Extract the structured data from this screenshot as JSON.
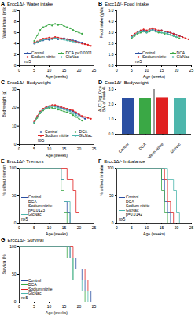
{
  "chart_data": [
    {
      "panel": "A",
      "type": "line",
      "title": "Ercc1Δ/- Water intake",
      "x_label": "Age (weeks)",
      "y_label": "Water intake (ml/day)",
      "x": [
        5,
        6,
        7,
        8,
        9,
        10,
        11,
        12,
        13,
        14,
        15,
        16,
        17,
        18,
        19,
        20,
        21,
        22,
        23,
        24
      ],
      "xlim": [
        0,
        25
      ],
      "xticks": [
        0,
        5,
        10,
        15,
        20,
        25
      ],
      "ylim": [
        0,
        10
      ],
      "yticks": [
        0,
        2,
        4,
        6,
        8,
        10
      ],
      "marker": "circle",
      "legend": "lower right",
      "annotations": [
        {
          "text": "p<0.0001",
          "series": "DCA"
        },
        {
          "text": "n≥5"
        }
      ],
      "series": [
        {
          "name": "Control",
          "color": "#2b4fa2",
          "values": [
            4.0,
            4.2,
            4.5,
            4.6,
            4.8,
            4.7,
            4.9,
            5.0,
            4.8,
            4.9,
            5.0,
            4.8,
            4.7,
            4.6,
            4.5,
            4.3,
            4.2,
            4.0,
            null,
            null
          ]
        },
        {
          "name": "DCA",
          "color": "#3aa845",
          "values": [
            4.5,
            5.5,
            6.5,
            7.0,
            7.2,
            7.5,
            7.3,
            7.6,
            7.4,
            7.5,
            7.2,
            7.0,
            6.8,
            6.5,
            6.2,
            6.0,
            5.8,
            null,
            null,
            null
          ]
        },
        {
          "name": "Sodium nitrite",
          "color": "#e02020",
          "values": [
            4.2,
            4.4,
            4.6,
            4.9,
            5.0,
            5.1,
            5.0,
            5.2,
            5.1,
            5.0,
            4.9,
            4.8,
            4.6,
            4.5,
            4.3,
            4.2,
            4.0,
            3.9,
            3.8,
            3.6
          ]
        },
        {
          "name": "GlcNac",
          "color": "#4db6ac",
          "values": [
            4.1,
            4.3,
            4.5,
            4.7,
            4.8,
            4.9,
            4.8,
            5.0,
            4.9,
            4.8,
            4.7,
            4.6,
            4.5,
            4.4,
            4.2,
            4.1,
            null,
            null,
            null,
            null
          ]
        }
      ]
    },
    {
      "panel": "B",
      "type": "line",
      "title": "Ercc1Δ/- Food intake",
      "x_label": "Age (weeks)",
      "y_label": "Food intake (g/day)",
      "x": [
        5,
        6,
        7,
        8,
        9,
        10,
        11,
        12,
        13,
        14,
        15,
        16,
        17,
        18,
        19,
        20,
        21,
        22,
        23,
        24
      ],
      "xlim": [
        0,
        25
      ],
      "xticks": [
        0,
        5,
        10,
        15,
        20,
        25
      ],
      "ylim": [
        0,
        5
      ],
      "yticks": [
        0,
        1,
        2,
        3,
        4,
        5
      ],
      "marker": "circle",
      "legend": "lower right",
      "annotations": [
        {
          "text": "n≥5"
        }
      ],
      "series": [
        {
          "name": "Control",
          "color": "#2b4fa2",
          "values": [
            2.6,
            2.8,
            3.0,
            3.1,
            3.2,
            3.1,
            3.2,
            3.3,
            3.2,
            3.1,
            3.2,
            3.1,
            3.0,
            3.0,
            2.9,
            2.8,
            2.7,
            2.6,
            null,
            null
          ]
        },
        {
          "name": "DCA",
          "color": "#3aa845",
          "values": [
            2.5,
            2.7,
            2.9,
            3.0,
            3.1,
            3.0,
            3.1,
            3.2,
            3.1,
            3.0,
            3.0,
            2.9,
            2.9,
            2.8,
            2.7,
            2.6,
            2.5,
            null,
            null,
            null
          ]
        },
        {
          "name": "Sodium nitrite",
          "color": "#e02020",
          "values": [
            2.7,
            2.9,
            3.1,
            3.2,
            3.3,
            3.2,
            3.3,
            3.4,
            3.3,
            3.2,
            3.2,
            3.1,
            3.1,
            3.0,
            2.9,
            2.8,
            2.7,
            2.6,
            2.5,
            2.4
          ]
        },
        {
          "name": "GlcNac",
          "color": "#4db6ac",
          "values": [
            2.6,
            2.8,
            3.0,
            3.1,
            3.1,
            3.0,
            3.2,
            3.2,
            3.1,
            3.1,
            3.0,
            3.0,
            2.9,
            2.8,
            2.7,
            2.6,
            null,
            null,
            null,
            null
          ]
        }
      ]
    },
    {
      "panel": "C",
      "type": "line",
      "title": "Ercc1Δ/- Bodyweight",
      "x_label": "Age (weeks)",
      "y_label": "Bodyweight (g)",
      "x": [
        5,
        6,
        7,
        8,
        9,
        10,
        11,
        12,
        13,
        14,
        15,
        16,
        17,
        18,
        19,
        20,
        21,
        22,
        23,
        24
      ],
      "xlim": [
        0,
        25
      ],
      "xticks": [
        0,
        5,
        10,
        15,
        20,
        25
      ],
      "ylim": [
        0,
        30
      ],
      "yticks": [
        0,
        10,
        20,
        30
      ],
      "marker": "circle",
      "legend": "lower right",
      "annotations": [
        {
          "text": "n≥5"
        }
      ],
      "series": [
        {
          "name": "Control",
          "color": "#2b4fa2",
          "values": [
            12,
            15,
            17.5,
            19,
            20,
            20.5,
            21,
            21,
            20.5,
            20,
            19.5,
            19,
            18.5,
            18,
            17,
            16,
            15,
            14,
            null,
            null
          ]
        },
        {
          "name": "DCA",
          "color": "#3aa845",
          "values": [
            11.5,
            14.5,
            17,
            18.5,
            19.5,
            20,
            20,
            19.5,
            19,
            18.5,
            18,
            17.5,
            17,
            16,
            15,
            14,
            13,
            null,
            null,
            null
          ]
        },
        {
          "name": "Sodium nitrite",
          "color": "#e02020",
          "values": [
            12.5,
            15.5,
            18,
            19.5,
            20.5,
            21,
            21.5,
            21.5,
            21,
            20.5,
            20,
            19.5,
            19,
            18.5,
            17.5,
            16.5,
            15.5,
            15,
            14.5,
            14
          ]
        },
        {
          "name": "GlcNac",
          "color": "#4db6ac",
          "values": [
            12,
            15,
            17.5,
            19,
            20,
            20.5,
            21,
            20.5,
            20,
            19.5,
            19,
            18.5,
            18,
            17,
            16,
            15,
            null,
            null,
            null,
            null
          ]
        }
      ]
    },
    {
      "panel": "D",
      "type": "bar",
      "title": "Ercc1Δ/- Bodyweight",
      "y_label": "AUC (log10 converted\nBW of week 4-16)",
      "categories": [
        "Control",
        "DCA",
        "Sodium nitrite",
        "GlcNac"
      ],
      "values": [
        2.42,
        2.38,
        2.45,
        2.4
      ],
      "colors": [
        "#2b4fa2",
        "#3aa845",
        "#e02020",
        "#4db6ac"
      ],
      "ylim": [
        0,
        3
      ],
      "yticks": [
        0,
        1,
        2,
        3
      ]
    },
    {
      "panel": "E",
      "type": "line",
      "title": "Ercc1Δ/- Tremors",
      "x_label": "Age (weeks)",
      "y_label": "% without tremors",
      "xlim": [
        0,
        25
      ],
      "xticks": [
        0,
        5,
        10,
        15,
        20,
        25
      ],
      "ylim": [
        0,
        100
      ],
      "yticks": [
        0,
        50,
        100
      ],
      "line_style": "step",
      "legend": "lower left",
      "annotations": [
        {
          "text": "p=0.0123",
          "series": "Sodium nitrite"
        },
        {
          "text": "n≥5"
        }
      ],
      "series": [
        {
          "name": "Control",
          "color": "#2b4fa2",
          "x": [
            0,
            14,
            15,
            16,
            17
          ],
          "values": [
            100,
            80,
            40,
            20,
            0
          ]
        },
        {
          "name": "DCA",
          "color": "#3aa845",
          "x": [
            0,
            14,
            15,
            16
          ],
          "values": [
            100,
            60,
            20,
            0
          ]
        },
        {
          "name": "Sodium nitrite",
          "color": "#e02020",
          "x": [
            0,
            16,
            18,
            19,
            20
          ],
          "values": [
            100,
            80,
            60,
            20,
            0
          ]
        },
        {
          "name": "GlcNac",
          "color": "#4db6ac",
          "x": [
            0,
            14,
            15,
            17
          ],
          "values": [
            100,
            80,
            40,
            0
          ]
        }
      ]
    },
    {
      "panel": "F",
      "type": "line",
      "title": "Ercc1Δ/- Imbalance",
      "x_label": "Age (weeks)",
      "y_label": "% without imbalance",
      "xlim": [
        0,
        25
      ],
      "xticks": [
        0,
        5,
        10,
        15,
        20,
        25
      ],
      "ylim": [
        0,
        100
      ],
      "yticks": [
        0,
        50,
        100
      ],
      "line_style": "step",
      "legend": "lower left",
      "annotations": [
        {
          "text": "p=0.0142",
          "series": "GlcNac"
        },
        {
          "text": "n≥5"
        }
      ],
      "series": [
        {
          "name": "Control",
          "color": "#2b4fa2",
          "x": [
            0,
            15,
            16,
            17,
            18
          ],
          "values": [
            100,
            80,
            40,
            20,
            0
          ]
        },
        {
          "name": "DCA",
          "color": "#3aa845",
          "x": [
            0,
            15,
            16,
            17
          ],
          "values": [
            100,
            60,
            20,
            0
          ]
        },
        {
          "name": "Sodium nitrite",
          "color": "#e02020",
          "x": [
            0,
            16,
            17,
            18,
            19
          ],
          "values": [
            100,
            80,
            40,
            20,
            0
          ]
        },
        {
          "name": "GlcNac",
          "color": "#4db6ac",
          "x": [
            0,
            17,
            19,
            20,
            21
          ],
          "values": [
            100,
            80,
            60,
            20,
            0
          ]
        }
      ]
    },
    {
      "panel": "G",
      "type": "line",
      "title": "Ercc1Δ/- Survival",
      "x_label": "Age (weeks)",
      "y_label": "Survival (%)",
      "xlim": [
        0,
        25
      ],
      "xticks": [
        0,
        5,
        10,
        15,
        20,
        25
      ],
      "ylim": [
        0,
        100
      ],
      "yticks": [
        0,
        50,
        100
      ],
      "line_style": "step",
      "legend": "lower left",
      "annotations": [
        {
          "text": "n≥5"
        }
      ],
      "series": [
        {
          "name": "Control",
          "color": "#2b4fa2",
          "x": [
            0,
            17,
            19,
            21,
            22,
            24
          ],
          "values": [
            100,
            80,
            60,
            40,
            20,
            0
          ]
        },
        {
          "name": "DCA",
          "color": "#3aa845",
          "x": [
            0,
            16,
            18,
            20,
            22
          ],
          "values": [
            100,
            80,
            40,
            20,
            0
          ]
        },
        {
          "name": "Sodium nitrite",
          "color": "#e02020",
          "x": [
            0,
            18,
            20,
            22,
            23,
            25
          ],
          "values": [
            100,
            80,
            60,
            40,
            20,
            0
          ]
        },
        {
          "name": "GlcNac",
          "color": "#4db6ac",
          "x": [
            0,
            17,
            18,
            21,
            23
          ],
          "values": [
            100,
            80,
            40,
            20,
            0
          ]
        }
      ]
    }
  ]
}
